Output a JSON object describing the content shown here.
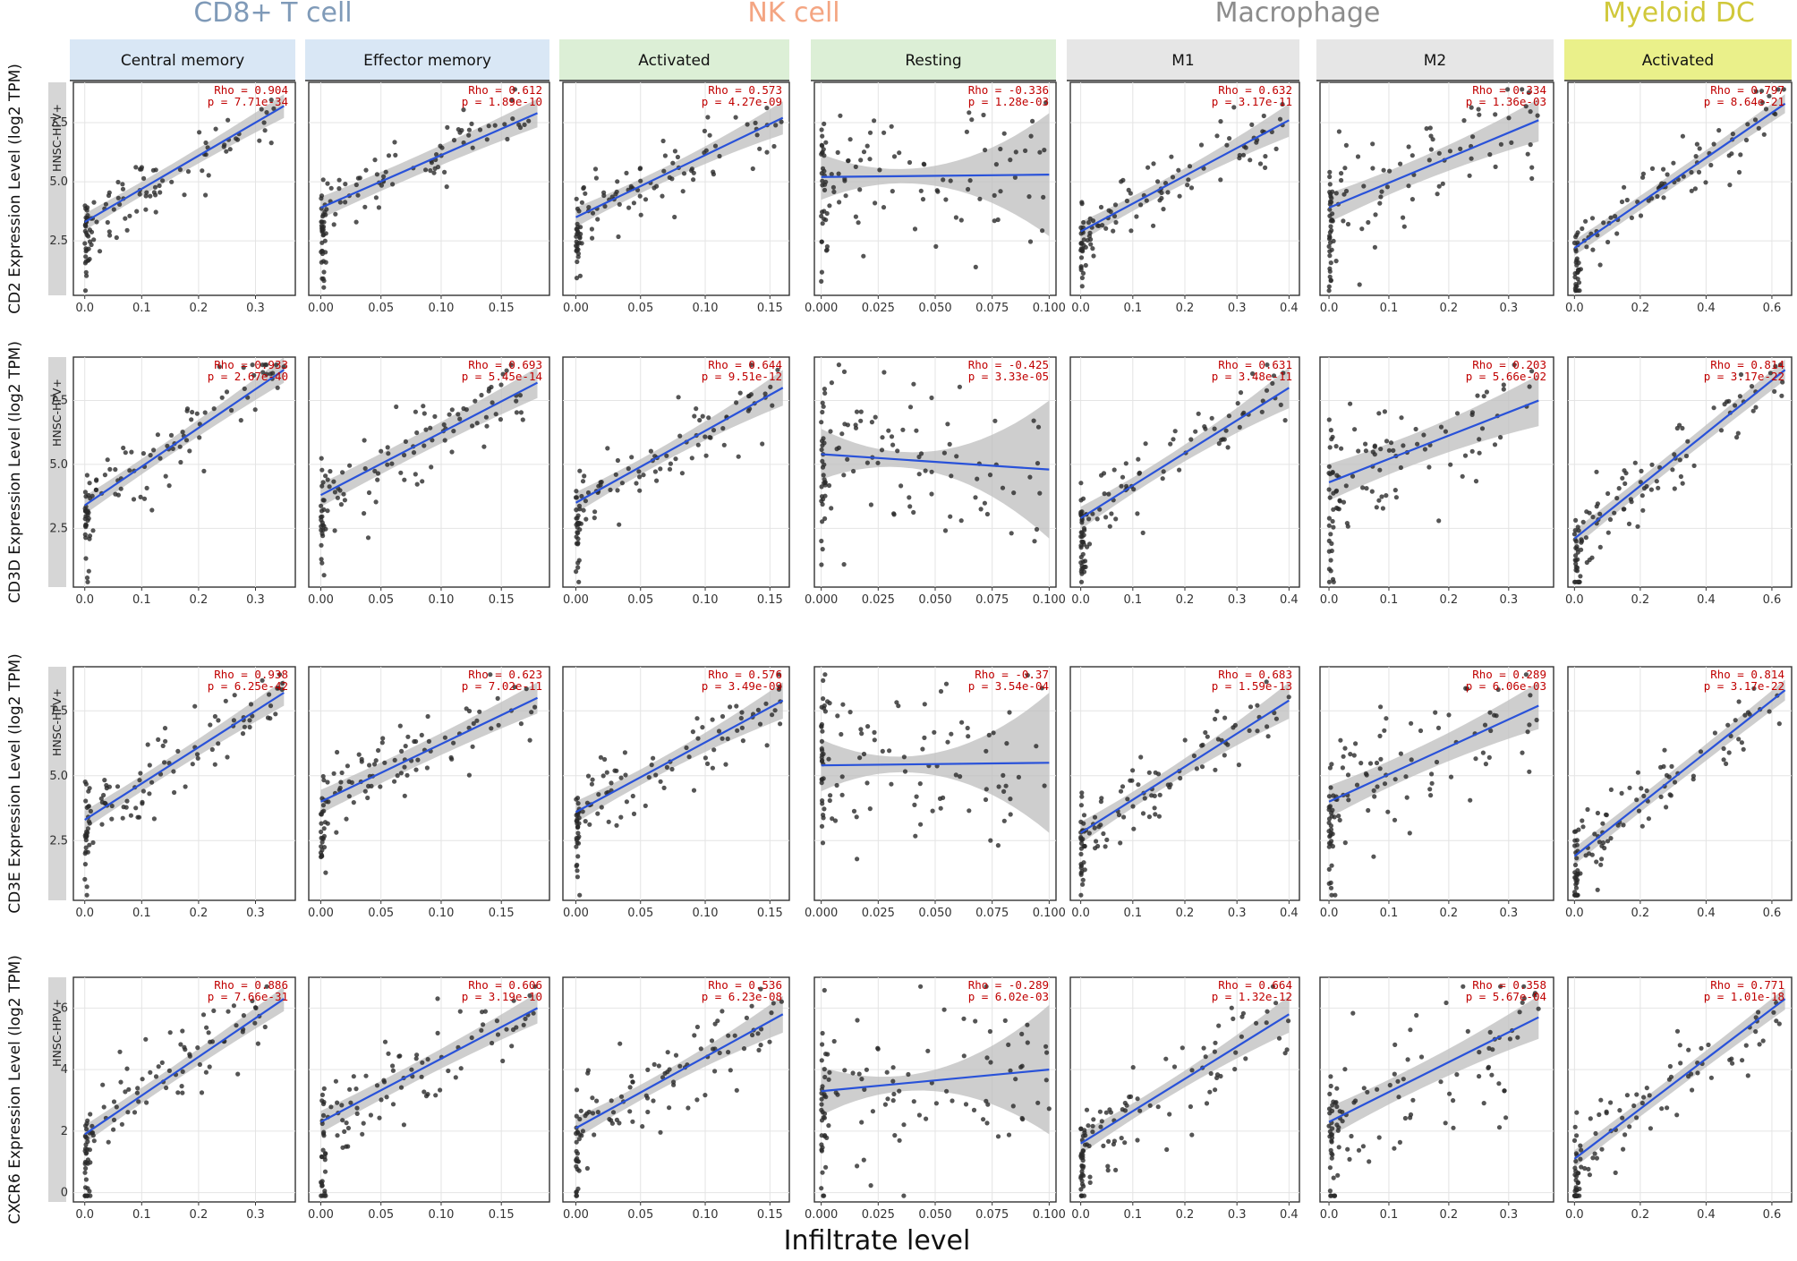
{
  "figure": {
    "xlabel": "Infiltrate level",
    "row_strip_label": "HNSC-HPV+"
  },
  "groups": [
    {
      "name": "CD8+ T cell",
      "color": "#7f9ab8"
    },
    {
      "name": "NK cell",
      "color": "#f4a582"
    },
    {
      "name": "Macrophage",
      "color": "#8c8c8c"
    },
    {
      "name": "Myeloid DC",
      "color": "#d0c83a"
    }
  ],
  "panels": [
    {
      "label": "Central memory",
      "strip_color": "#d9e7f5",
      "xlim": [
        -0.02,
        0.37
      ],
      "xticks": [
        0.0,
        0.1,
        0.2,
        0.3
      ],
      "xtick_labels": [
        "0.0",
        "0.1",
        "0.2",
        "0.3"
      ]
    },
    {
      "label": "Effector memory",
      "strip_color": "#d9e7f5",
      "xlim": [
        -0.01,
        0.19
      ],
      "xticks": [
        0.0,
        0.05,
        0.1,
        0.15
      ],
      "xtick_labels": [
        "0.00",
        "0.05",
        "0.10",
        "0.15"
      ]
    },
    {
      "label": "Activated",
      "strip_color": "#dcefd6",
      "xlim": [
        -0.01,
        0.165
      ],
      "xticks": [
        0.0,
        0.05,
        0.1,
        0.15
      ],
      "xtick_labels": [
        "0.00",
        "0.05",
        "0.10",
        "0.15"
      ]
    },
    {
      "label": "Resting",
      "strip_color": "#dcefd6",
      "xlim": [
        -0.003,
        0.103
      ],
      "xticks": [
        0.0,
        0.025,
        0.05,
        0.075,
        0.1
      ],
      "xtick_labels": [
        "0.000",
        "0.025",
        "0.050",
        "0.075",
        "0.100"
      ]
    },
    {
      "label": "M1",
      "strip_color": "#e6e6e6",
      "xlim": [
        -0.02,
        0.42
      ],
      "xticks": [
        0.0,
        0.1,
        0.2,
        0.3,
        0.4
      ],
      "xtick_labels": [
        "0.0",
        "0.1",
        "0.2",
        "0.3",
        "0.4"
      ]
    },
    {
      "label": "M2",
      "strip_color": "#e6e6e6",
      "xlim": [
        -0.015,
        0.375
      ],
      "xticks": [
        0.0,
        0.1,
        0.2,
        0.3
      ],
      "xtick_labels": [
        "0.0",
        "0.1",
        "0.2",
        "0.3"
      ]
    },
    {
      "label": "Activated",
      "strip_color": "#eaf08a",
      "xlim": [
        -0.02,
        0.66
      ],
      "xticks": [
        0.0,
        0.2,
        0.4,
        0.6
      ],
      "xtick_labels": [
        "0.0",
        "0.2",
        "0.4",
        "0.6"
      ]
    }
  ],
  "chart_data": {
    "type": "scatter",
    "title": "",
    "xlabel": "Infiltrate level",
    "rows": [
      {
        "gene": "CD2",
        "ylabel": "CD2 Expression Level (log2 TPM)",
        "ylim": [
          0.2,
          9.2
        ],
        "yticks": [
          2.5,
          5.0,
          7.5
        ],
        "ytick_labels": [
          "2.5",
          "5.0",
          "7.5"
        ],
        "cells": [
          {
            "rho": "0.904",
            "p": "7.71e-34",
            "line": [
              [
                0.0,
                3.3
              ],
              [
                0.35,
                8.2
              ]
            ],
            "band": [
              0.3,
              0.5
            ]
          },
          {
            "rho": "0.612",
            "p": "1.89e-10",
            "line": [
              [
                0.0,
                3.9
              ],
              [
                0.18,
                7.9
              ]
            ],
            "band": [
              0.4,
              0.6
            ]
          },
          {
            "rho": "0.573",
            "p": "4.27e-09",
            "line": [
              [
                0.0,
                3.5
              ],
              [
                0.16,
                7.7
              ]
            ],
            "band": [
              0.3,
              0.7
            ]
          },
          {
            "rho": "-0.336",
            "p": "1.28e-03",
            "line": [
              [
                0.0,
                5.2
              ],
              [
                0.1,
                5.3
              ]
            ],
            "band": [
              0.3,
              2.6
            ]
          },
          {
            "rho": "0.632",
            "p": "3.17e-11",
            "line": [
              [
                0.0,
                2.9
              ],
              [
                0.4,
                7.6
              ]
            ],
            "band": [
              0.3,
              0.7
            ]
          },
          {
            "rho": "0.334",
            "p": "1.36e-03",
            "line": [
              [
                0.0,
                3.9
              ],
              [
                0.35,
                7.6
              ]
            ],
            "band": [
              0.5,
              0.9
            ]
          },
          {
            "rho": "0.797",
            "p": "8.64e-21",
            "line": [
              [
                0.0,
                2.2
              ],
              [
                0.64,
                8.3
              ]
            ],
            "band": [
              0.3,
              0.4
            ]
          }
        ]
      },
      {
        "gene": "CD3D",
        "ylabel": "CD3D Expression Level (log2 TPM)",
        "ylim": [
          0.2,
          9.2
        ],
        "yticks": [
          2.5,
          5.0,
          7.5
        ],
        "ytick_labels": [
          "2.5",
          "5.0",
          "7.5"
        ],
        "cells": [
          {
            "rho": "0.933",
            "p": "2.67e-40",
            "line": [
              [
                0.0,
                3.4
              ],
              [
                0.35,
                8.7
              ]
            ],
            "band": [
              0.3,
              0.5
            ]
          },
          {
            "rho": "0.693",
            "p": "5.45e-14",
            "line": [
              [
                0.0,
                3.8
              ],
              [
                0.18,
                8.2
              ]
            ],
            "band": [
              0.4,
              0.6
            ]
          },
          {
            "rho": "0.644",
            "p": "9.51e-12",
            "line": [
              [
                0.0,
                3.5
              ],
              [
                0.16,
                8.0
              ]
            ],
            "band": [
              0.3,
              0.7
            ]
          },
          {
            "rho": "-0.425",
            "p": "3.33e-05",
            "line": [
              [
                0.0,
                5.4
              ],
              [
                0.1,
                4.8
              ]
            ],
            "band": [
              0.3,
              2.7
            ]
          },
          {
            "rho": "0.631",
            "p": "3.48e-11",
            "line": [
              [
                0.0,
                2.9
              ],
              [
                0.4,
                8.0
              ]
            ],
            "band": [
              0.3,
              0.8
            ]
          },
          {
            "rho": "0.203",
            "p": "5.66e-02",
            "line": [
              [
                0.0,
                4.3
              ],
              [
                0.35,
                7.5
              ]
            ],
            "band": [
              0.6,
              1.0
            ]
          },
          {
            "rho": "0.814",
            "p": "3.17e-22",
            "line": [
              [
                0.0,
                2.1
              ],
              [
                0.64,
                8.7
              ]
            ],
            "band": [
              0.3,
              0.4
            ]
          }
        ]
      },
      {
        "gene": "CD3E",
        "ylabel": "CD3E Expression Level (log2 TPM)",
        "ylim": [
          0.2,
          9.2
        ],
        "yticks": [
          2.5,
          5.0,
          7.5
        ],
        "ytick_labels": [
          "2.5",
          "5.0",
          "7.5"
        ],
        "cells": [
          {
            "rho": "0.938",
            "p": "6.25e-42",
            "line": [
              [
                0.0,
                3.3
              ],
              [
                0.35,
                8.2
              ]
            ],
            "band": [
              0.3,
              0.5
            ]
          },
          {
            "rho": "0.623",
            "p": "7.02e-11",
            "line": [
              [
                0.0,
                4.0
              ],
              [
                0.18,
                8.0
              ]
            ],
            "band": [
              0.4,
              0.6
            ]
          },
          {
            "rho": "0.576",
            "p": "3.49e-09",
            "line": [
              [
                0.0,
                3.6
              ],
              [
                0.16,
                7.9
              ]
            ],
            "band": [
              0.3,
              0.7
            ]
          },
          {
            "rho": "-0.37",
            "p": "3.54e-04",
            "line": [
              [
                0.0,
                5.4
              ],
              [
                0.1,
                5.5
              ]
            ],
            "band": [
              0.3,
              2.7
            ]
          },
          {
            "rho": "0.683",
            "p": "1.59e-13",
            "line": [
              [
                0.0,
                2.8
              ],
              [
                0.4,
                7.9
              ]
            ],
            "band": [
              0.3,
              0.7
            ]
          },
          {
            "rho": "0.289",
            "p": "6.06e-03",
            "line": [
              [
                0.0,
                4.0
              ],
              [
                0.35,
                7.7
              ]
            ],
            "band": [
              0.5,
              0.9
            ]
          },
          {
            "rho": "0.814",
            "p": "3.17e-22",
            "line": [
              [
                0.0,
                1.9
              ],
              [
                0.64,
                8.3
              ]
            ],
            "band": [
              0.3,
              0.4
            ]
          }
        ]
      },
      {
        "gene": "CXCR6",
        "ylabel": "CXCR6 Expression Level (log2 TPM)",
        "ylim": [
          -0.3,
          7.0
        ],
        "yticks": [
          0,
          2,
          4,
          6
        ],
        "ytick_labels": [
          "0",
          "2",
          "4",
          "6"
        ],
        "cells": [
          {
            "rho": "0.886",
            "p": "7.66e-31",
            "line": [
              [
                0.0,
                1.9
              ],
              [
                0.35,
                6.3
              ]
            ],
            "band": [
              0.25,
              0.4
            ]
          },
          {
            "rho": "0.606",
            "p": "3.19e-10",
            "line": [
              [
                0.0,
                2.3
              ],
              [
                0.18,
                6.0
              ]
            ],
            "band": [
              0.3,
              0.5
            ]
          },
          {
            "rho": "0.536",
            "p": "6.23e-08",
            "line": [
              [
                0.0,
                2.1
              ],
              [
                0.16,
                5.8
              ]
            ],
            "band": [
              0.25,
              0.6
            ]
          },
          {
            "rho": "-0.289",
            "p": "6.02e-03",
            "line": [
              [
                0.0,
                3.3
              ],
              [
                0.1,
                4.0
              ]
            ],
            "band": [
              0.25,
              2.1
            ]
          },
          {
            "rho": "0.664",
            "p": "1.32e-12",
            "line": [
              [
                0.0,
                1.6
              ],
              [
                0.4,
                5.8
              ]
            ],
            "band": [
              0.25,
              0.6
            ]
          },
          {
            "rho": "0.358",
            "p": "5.67e-04",
            "line": [
              [
                0.0,
                2.3
              ],
              [
                0.35,
                5.7
              ]
            ],
            "band": [
              0.4,
              0.7
            ]
          },
          {
            "rho": "0.771",
            "p": "1.01e-18",
            "line": [
              [
                0.0,
                1.1
              ],
              [
                0.64,
                6.3
              ]
            ],
            "band": [
              0.25,
              0.35
            ]
          }
        ]
      }
    ],
    "colors": {
      "points": "#2b2b2b",
      "fit_line": "#2952d9",
      "band": "#bdbdbd",
      "stat_text": "#c00000",
      "grid": "#e4e4e4",
      "row_strip": "#d6d6d6"
    }
  }
}
